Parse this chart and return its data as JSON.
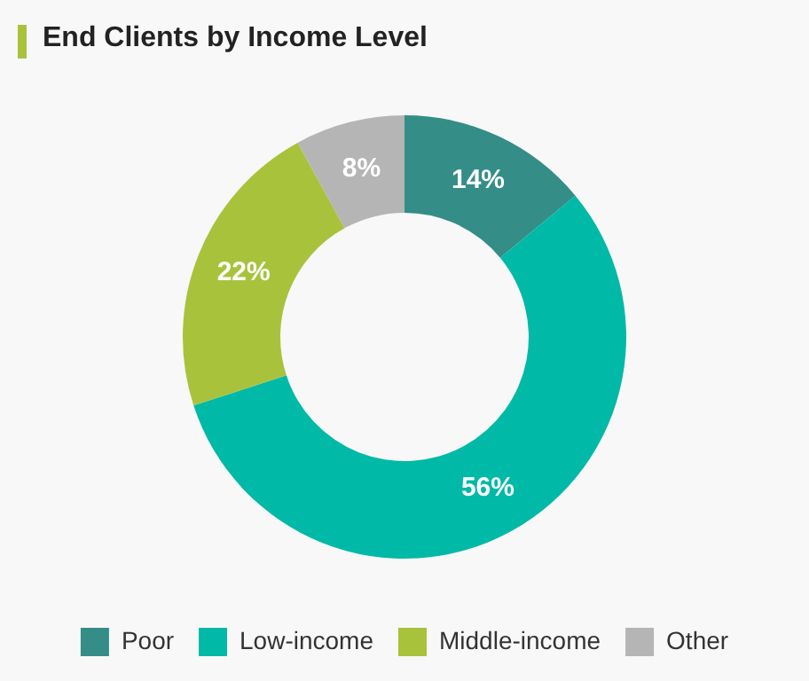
{
  "chart_data": {
    "type": "donut",
    "title": "End Clients by Income Level",
    "categories": [
      "Poor",
      "Low-income",
      "Middle-income",
      "Other"
    ],
    "values": [
      14,
      56,
      22,
      8
    ],
    "colors": [
      "#358d88",
      "#00b9a6",
      "#a9c23c",
      "#b5b5b5"
    ],
    "value_labels": [
      "14%",
      "56%",
      "22%",
      "8%"
    ],
    "legend": "bottom"
  }
}
